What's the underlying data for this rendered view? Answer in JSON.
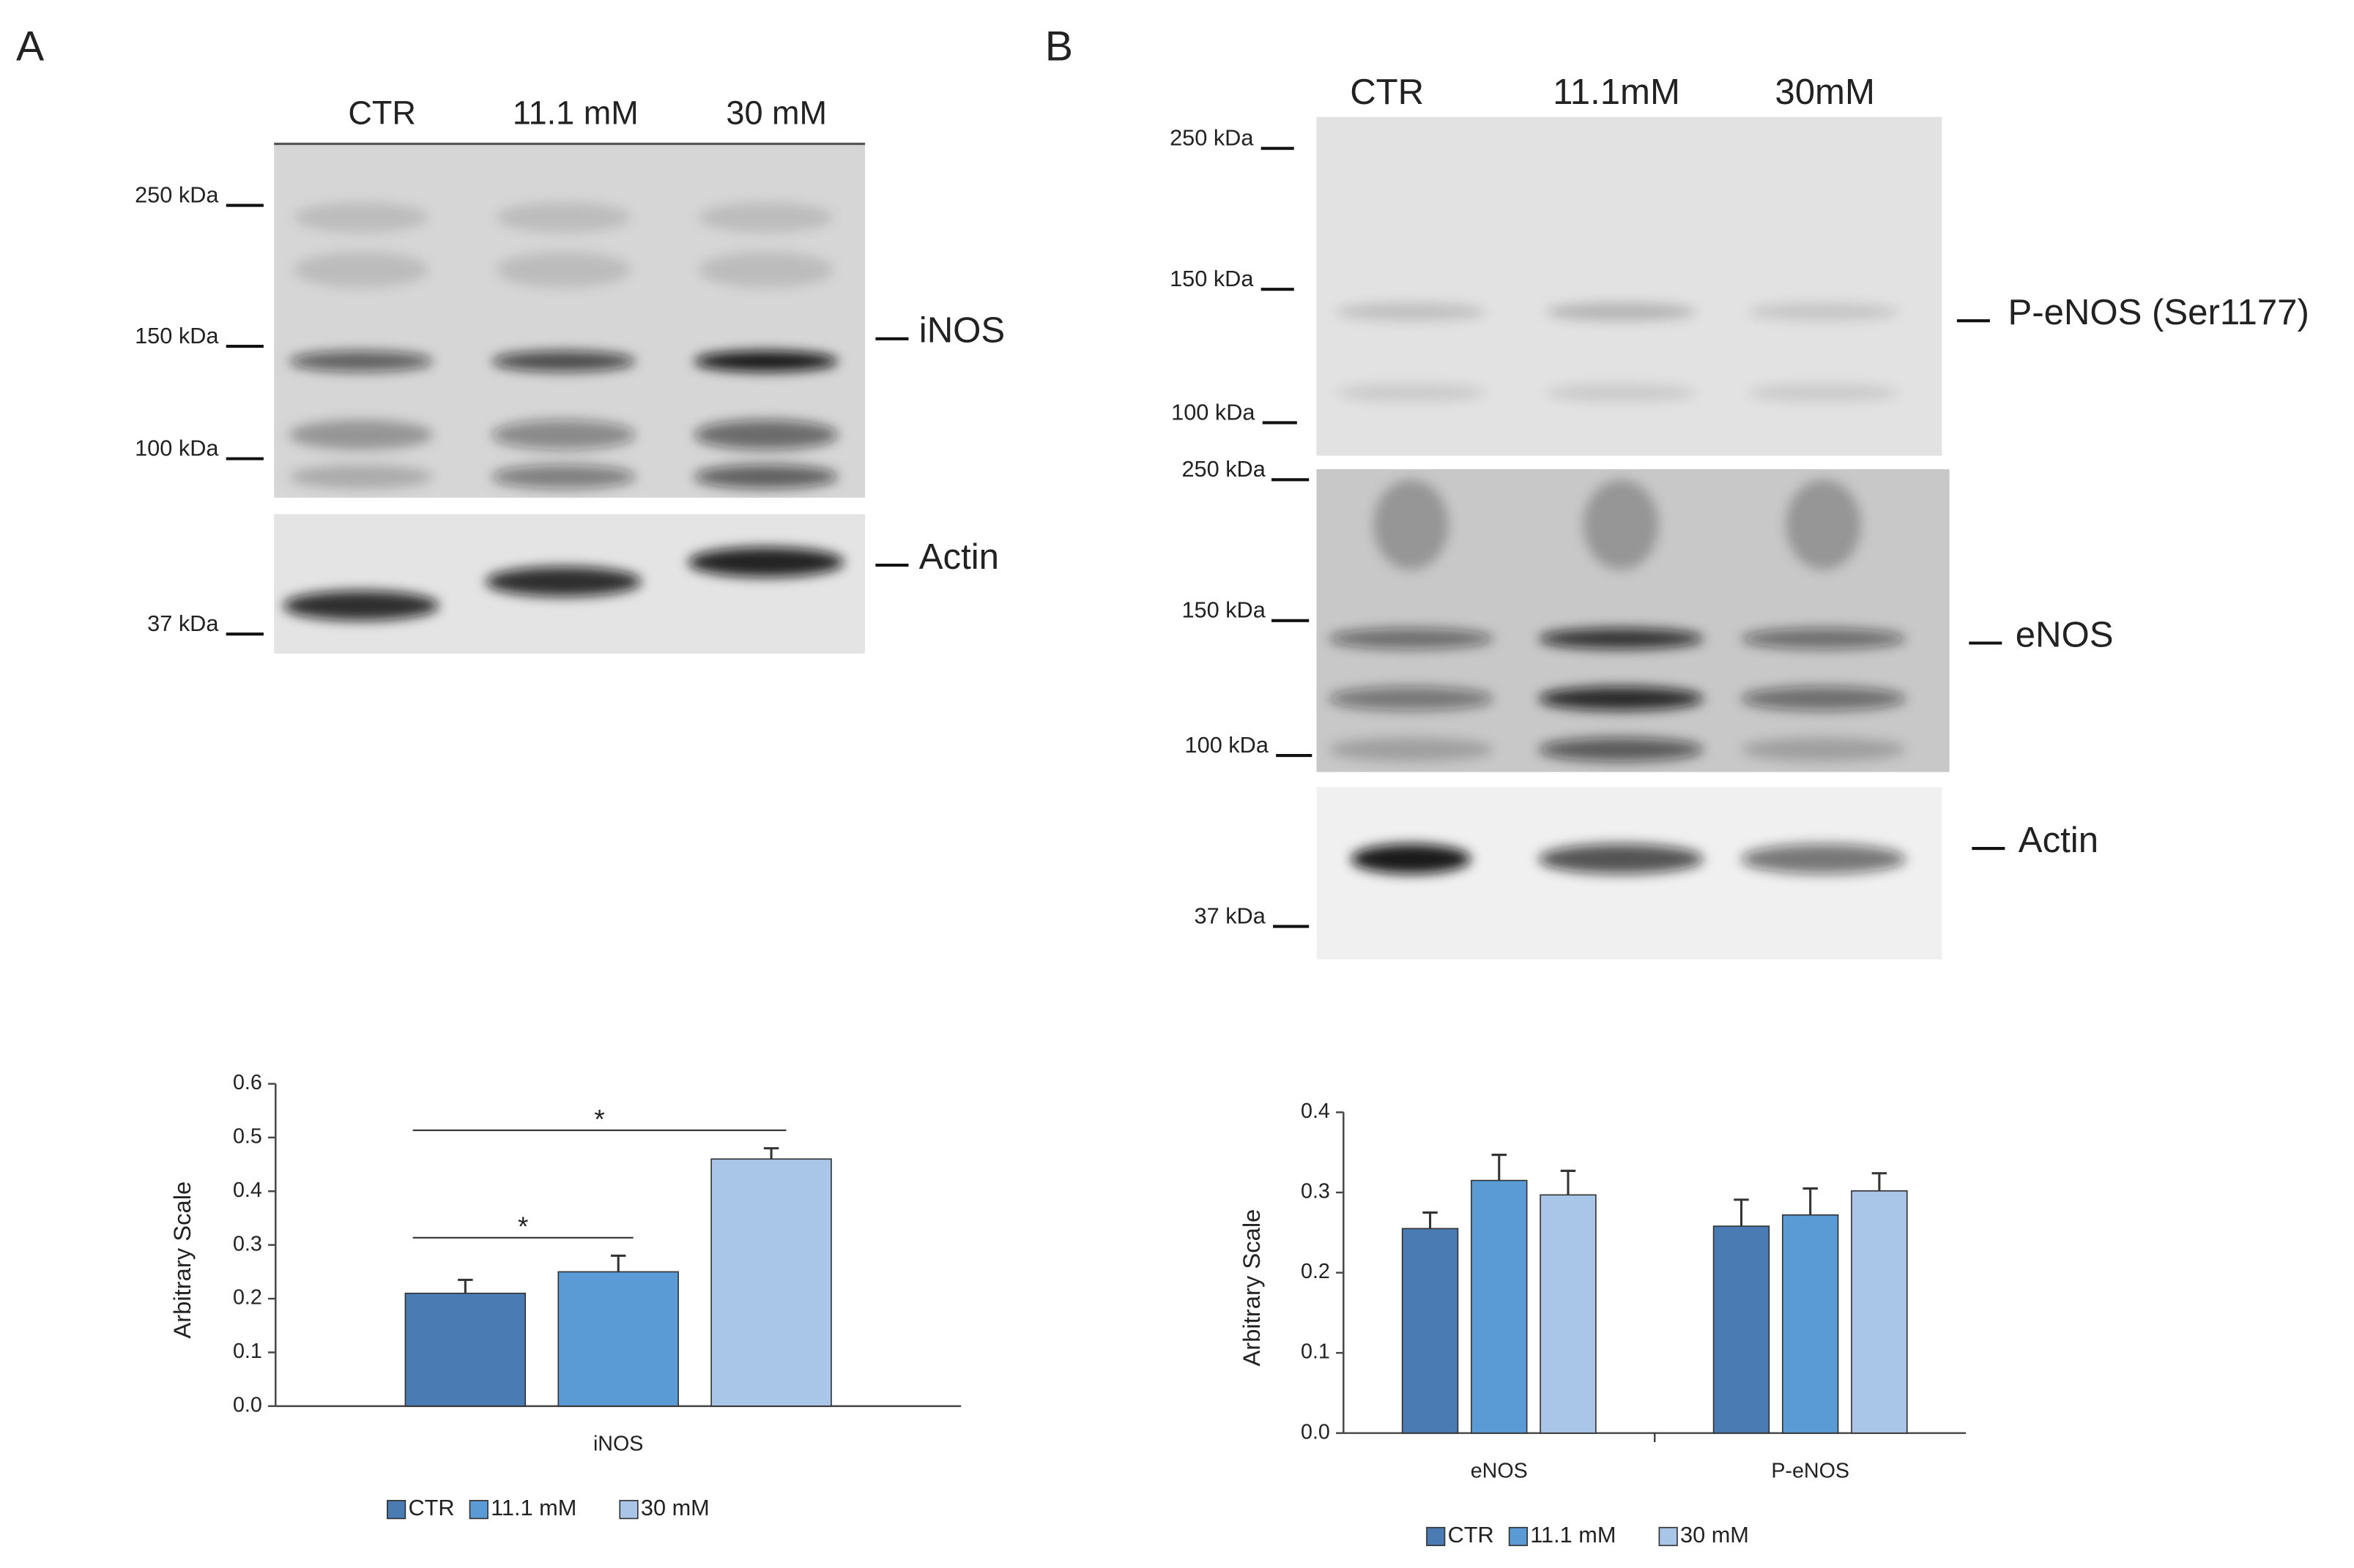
{
  "panels": [
    {
      "label": "A",
      "lanes": [
        "CTR",
        "11.1 mM",
        "30 mM"
      ],
      "markers": [
        "250 kDa",
        "150 kDa",
        "100 kDa",
        "37 kDa"
      ],
      "bands": [
        "iNOS",
        "Actin"
      ]
    },
    {
      "label": "B",
      "lanes": [
        "CTR",
        "11.1mM",
        "30mM"
      ],
      "markers": [
        "250 kDa",
        "150 kDa",
        "100 kDa",
        "250 kDa",
        "150 kDa",
        "100 kDa",
        "37 kDa"
      ],
      "bands": [
        "P-eNOS (Ser1177)",
        "eNOS",
        "Actin"
      ]
    }
  ],
  "chart_data": [
    {
      "type": "bar",
      "ylabel": "Arbitrary Scale",
      "categories": [
        "iNOS"
      ],
      "series": [
        {
          "name": "CTR",
          "color": "#4a7bb2",
          "values": [
            0.21
          ],
          "errors": [
            0.025
          ]
        },
        {
          "name": "11.1 mM",
          "color": "#5b9bd5",
          "values": [
            0.25
          ],
          "errors": [
            0.03
          ]
        },
        {
          "name": "30 mM",
          "color": "#a9c5e8",
          "values": [
            0.46
          ],
          "errors": [
            0.02
          ]
        }
      ],
      "ylim": [
        0,
        0.6
      ],
      "yticks": [
        {
          "value": 0,
          "label": "0.0"
        },
        0.1,
        0.2,
        0.3,
        0.4,
        0.5,
        0.6
      ],
      "significance": [
        {
          "between": [
            "CTR",
            "30 mM"
          ],
          "label": "*"
        },
        {
          "between": [
            "CTR",
            "11.1 mM"
          ],
          "label": "*"
        }
      ]
    },
    {
      "type": "bar",
      "ylabel": "Arbitrary Scale",
      "categories": [
        "eNOS",
        "P-eNOS"
      ],
      "series": [
        {
          "name": "CTR",
          "color": "#4a7bb2",
          "values": [
            0.255,
            0.258
          ],
          "errors": [
            0.02,
            0.033
          ]
        },
        {
          "name": "11.1 mM",
          "color": "#5b9bd5",
          "values": [
            0.315,
            0.272
          ],
          "errors": [
            0.032,
            0.033
          ]
        },
        {
          "name": "30 mM",
          "color": "#a9c5e8",
          "values": [
            0.297,
            0.302
          ],
          "errors": [
            0.03,
            0.022
          ]
        }
      ],
      "ylim": [
        0,
        0.4
      ],
      "yticks": [
        {
          "value": 0,
          "label": "0.0"
        },
        0.1,
        0.2,
        0.3,
        0.4
      ]
    }
  ]
}
